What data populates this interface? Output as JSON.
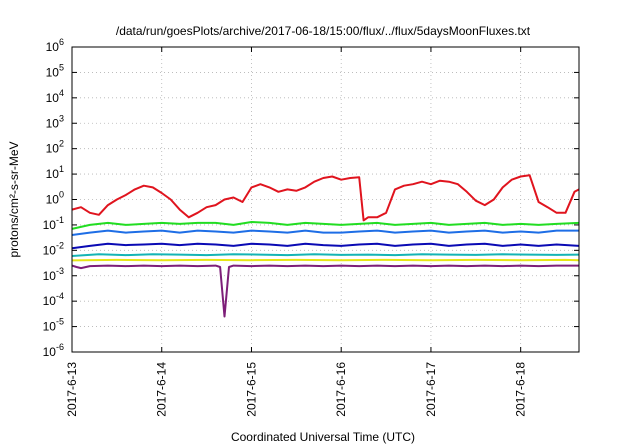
{
  "chart_data": {
    "type": "line",
    "title": "/data/run/goesPlots/archive/2017-06-18/15:00/flux/../flux/5daysMoonFluxes.txt",
    "xlabel": "Coordinated Universal Time (UTC)",
    "ylabel": "protons/cm²-s-sr-MeV",
    "yscale": "log",
    "ylim": [
      1e-06,
      1000000.0
    ],
    "xlim": [
      0,
      5.65
    ],
    "x_unit": "days since 2017-6-13",
    "grid": true,
    "legend": "none",
    "xticks": [
      {
        "label": "2017-6-13",
        "value": 0
      },
      {
        "label": "2017-6-14",
        "value": 1
      },
      {
        "label": "2017-6-15",
        "value": 2
      },
      {
        "label": "2017-6-16",
        "value": 3
      },
      {
        "label": "2017-6-17",
        "value": 4
      },
      {
        "label": "2017-6-18",
        "value": 5
      }
    ],
    "yticks": [
      {
        "exp": "-6",
        "value": -6
      },
      {
        "exp": "-5",
        "value": -5
      },
      {
        "exp": "-4",
        "value": -4
      },
      {
        "exp": "-3",
        "value": -3
      },
      {
        "exp": "-2",
        "value": -2
      },
      {
        "exp": "-1",
        "value": -1
      },
      {
        "exp": "0",
        "value": 0
      },
      {
        "exp": "1",
        "value": 1
      },
      {
        "exp": "2",
        "value": 2
      },
      {
        "exp": "3",
        "value": 3
      },
      {
        "exp": "4",
        "value": 4
      },
      {
        "exp": "5",
        "value": 5
      },
      {
        "exp": "6",
        "value": 6
      }
    ],
    "series": [
      {
        "color": "#e0141e",
        "x": [
          0.0,
          0.1,
          0.2,
          0.3,
          0.4,
          0.5,
          0.6,
          0.7,
          0.8,
          0.9,
          1.0,
          1.1,
          1.2,
          1.3,
          1.4,
          1.5,
          1.6,
          1.7,
          1.8,
          1.9,
          2.0,
          2.1,
          2.2,
          2.3,
          2.4,
          2.5,
          2.6,
          2.7,
          2.8,
          2.9,
          3.0,
          3.1,
          3.2,
          3.25,
          3.3,
          3.4,
          3.5,
          3.6,
          3.7,
          3.8,
          3.9,
          4.0,
          4.1,
          4.2,
          4.3,
          4.4,
          4.5,
          4.6,
          4.7,
          4.8,
          4.9,
          5.0,
          5.1,
          5.2,
          5.3,
          5.4,
          5.5,
          5.6,
          5.65
        ],
        "values": [
          0.4,
          0.5,
          0.3,
          0.25,
          0.6,
          1.0,
          1.5,
          2.5,
          3.5,
          3.0,
          1.8,
          1.0,
          0.4,
          0.2,
          0.3,
          0.5,
          0.6,
          1.0,
          1.2,
          0.8,
          3.0,
          4.0,
          3.0,
          2.0,
          2.5,
          2.2,
          3.0,
          5.0,
          7.0,
          8.0,
          6.0,
          7.0,
          7.5,
          0.15,
          0.2,
          0.2,
          0.3,
          2.5,
          3.5,
          4.0,
          5.0,
          4.0,
          5.5,
          5.0,
          4.0,
          2.0,
          0.9,
          0.6,
          1.0,
          3.0,
          6.0,
          8.0,
          9.0,
          0.8,
          0.5,
          0.3,
          0.3,
          2.0,
          2.5
        ]
      },
      {
        "color": "#22dd22",
        "x": [
          0.0,
          0.2,
          0.4,
          0.6,
          0.8,
          1.0,
          1.2,
          1.4,
          1.6,
          1.8,
          2.0,
          2.2,
          2.4,
          2.6,
          2.8,
          3.0,
          3.2,
          3.4,
          3.6,
          3.8,
          4.0,
          4.2,
          4.4,
          4.6,
          4.8,
          5.0,
          5.2,
          5.4,
          5.65
        ],
        "values": [
          0.07,
          0.1,
          0.12,
          0.1,
          0.11,
          0.12,
          0.11,
          0.12,
          0.12,
          0.1,
          0.13,
          0.12,
          0.1,
          0.12,
          0.11,
          0.1,
          0.11,
          0.12,
          0.1,
          0.11,
          0.12,
          0.1,
          0.11,
          0.12,
          0.1,
          0.11,
          0.1,
          0.11,
          0.12
        ]
      },
      {
        "color": "#1e6ee6",
        "x": [
          0.0,
          0.2,
          0.4,
          0.6,
          0.8,
          1.0,
          1.2,
          1.4,
          1.6,
          1.8,
          2.0,
          2.2,
          2.4,
          2.6,
          2.8,
          3.0,
          3.2,
          3.4,
          3.6,
          3.8,
          4.0,
          4.2,
          4.4,
          4.6,
          4.8,
          5.0,
          5.2,
          5.4,
          5.65
        ],
        "values": [
          0.04,
          0.05,
          0.06,
          0.05,
          0.055,
          0.06,
          0.05,
          0.06,
          0.055,
          0.05,
          0.06,
          0.055,
          0.05,
          0.06,
          0.05,
          0.05,
          0.055,
          0.06,
          0.05,
          0.055,
          0.06,
          0.05,
          0.055,
          0.06,
          0.05,
          0.055,
          0.05,
          0.06,
          0.06
        ]
      },
      {
        "color": "#0a0ab4",
        "x": [
          0.0,
          0.2,
          0.4,
          0.6,
          0.8,
          1.0,
          1.2,
          1.4,
          1.6,
          1.8,
          2.0,
          2.2,
          2.4,
          2.6,
          2.8,
          3.0,
          3.2,
          3.4,
          3.6,
          3.8,
          4.0,
          4.2,
          4.4,
          4.6,
          4.8,
          5.0,
          5.2,
          5.4,
          5.65
        ],
        "values": [
          0.012,
          0.015,
          0.018,
          0.016,
          0.017,
          0.018,
          0.016,
          0.018,
          0.017,
          0.015,
          0.018,
          0.017,
          0.015,
          0.018,
          0.016,
          0.015,
          0.017,
          0.018,
          0.015,
          0.017,
          0.018,
          0.015,
          0.017,
          0.018,
          0.015,
          0.017,
          0.015,
          0.017,
          0.015
        ]
      },
      {
        "color": "#14b4b4",
        "x": [
          0.0,
          0.3,
          0.6,
          0.9,
          1.2,
          1.5,
          1.8,
          2.1,
          2.4,
          2.7,
          3.0,
          3.3,
          3.6,
          3.9,
          4.2,
          4.5,
          4.8,
          5.1,
          5.4,
          5.65
        ],
        "values": [
          0.006,
          0.007,
          0.0065,
          0.007,
          0.0068,
          0.0065,
          0.007,
          0.0068,
          0.0065,
          0.007,
          0.0066,
          0.0068,
          0.0065,
          0.007,
          0.0068,
          0.0066,
          0.007,
          0.0068,
          0.0066,
          0.0068
        ]
      },
      {
        "color": "#e6e614",
        "x": [
          0.0,
          0.5,
          1.0,
          1.5,
          2.0,
          2.5,
          3.0,
          3.5,
          4.0,
          4.5,
          5.0,
          5.5,
          5.65
        ],
        "values": [
          0.004,
          0.0042,
          0.0041,
          0.0042,
          0.0041,
          0.0042,
          0.0041,
          0.0042,
          0.0041,
          0.0042,
          0.0041,
          0.0042,
          0.0041
        ]
      },
      {
        "color": "#7d1e78",
        "x": [
          0.0,
          0.05,
          0.1,
          0.2,
          0.4,
          0.6,
          0.8,
          1.0,
          1.2,
          1.4,
          1.6,
          1.65,
          1.7,
          1.75,
          1.8,
          2.0,
          2.2,
          2.4,
          2.6,
          2.8,
          3.0,
          3.2,
          3.4,
          3.6,
          3.8,
          4.0,
          4.2,
          4.4,
          4.6,
          4.8,
          5.0,
          5.2,
          5.4,
          5.65
        ],
        "values": [
          0.0025,
          0.0022,
          0.002,
          0.0024,
          0.0025,
          0.0024,
          0.0025,
          0.0024,
          0.0025,
          0.0024,
          0.0025,
          0.0022,
          2.5e-05,
          0.0022,
          0.0025,
          0.0024,
          0.0025,
          0.0024,
          0.0025,
          0.0024,
          0.0025,
          0.0024,
          0.0025,
          0.0024,
          0.0025,
          0.0024,
          0.0025,
          0.0024,
          0.0025,
          0.0024,
          0.0025,
          0.0024,
          0.0025,
          0.0025
        ]
      }
    ]
  }
}
